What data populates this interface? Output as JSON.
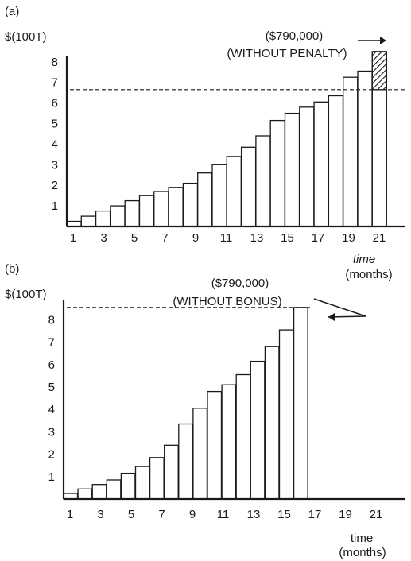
{
  "chart_data": [
    {
      "type": "bar",
      "panel_label": "(a)",
      "ylabel": "$(100T)",
      "xlabel": "time",
      "xlabel_unit": "(months)",
      "x": [
        1,
        2,
        3,
        4,
        5,
        6,
        7,
        8,
        9,
        10,
        11,
        12,
        13,
        14,
        15,
        16,
        17,
        18,
        19,
        20,
        21,
        22
      ],
      "values": [
        0.25,
        0.5,
        0.75,
        1.0,
        1.25,
        1.5,
        1.7,
        1.9,
        2.1,
        2.6,
        3.0,
        3.4,
        3.85,
        4.4,
        5.15,
        5.5,
        5.8,
        6.05,
        6.35,
        7.25,
        7.55,
        8.5
      ],
      "x_ticks": [
        "1",
        "3",
        "5",
        "7",
        "9",
        "11",
        "13",
        "15",
        "17",
        "19",
        "21"
      ],
      "y_ticks": [
        "1",
        "2",
        "3",
        "4",
        "5",
        "6",
        "7",
        "8"
      ],
      "ylim": [
        0,
        8.5
      ],
      "reference_line": 6.65,
      "hatched_bar_from": 6.65,
      "annotation_lines": [
        "($790,000)",
        "(WITHOUT PENALTY)"
      ]
    },
    {
      "type": "bar",
      "panel_label": "(b)",
      "ylabel": "$(100T)",
      "xlabel": "time",
      "xlabel_unit": "(months)",
      "x": [
        1,
        2,
        3,
        4,
        5,
        6,
        7,
        8,
        9,
        10,
        11,
        12,
        13,
        14,
        15,
        16,
        17
      ],
      "values": [
        0.25,
        0.45,
        0.65,
        0.85,
        1.15,
        1.45,
        1.85,
        2.4,
        3.35,
        4.05,
        4.8,
        5.1,
        5.55,
        6.15,
        6.8,
        7.55,
        8.55
      ],
      "x_ticks": [
        "1",
        "3",
        "5",
        "7",
        "9",
        "11",
        "13",
        "15",
        "17",
        "19",
        "21"
      ],
      "y_ticks": [
        "1",
        "2",
        "3",
        "4",
        "5",
        "6",
        "7",
        "8"
      ],
      "ylim": [
        0,
        9
      ],
      "reference_line": 8.55,
      "annotation_lines": [
        "($790,000)",
        "(WITHOUT BONUS)"
      ]
    }
  ]
}
